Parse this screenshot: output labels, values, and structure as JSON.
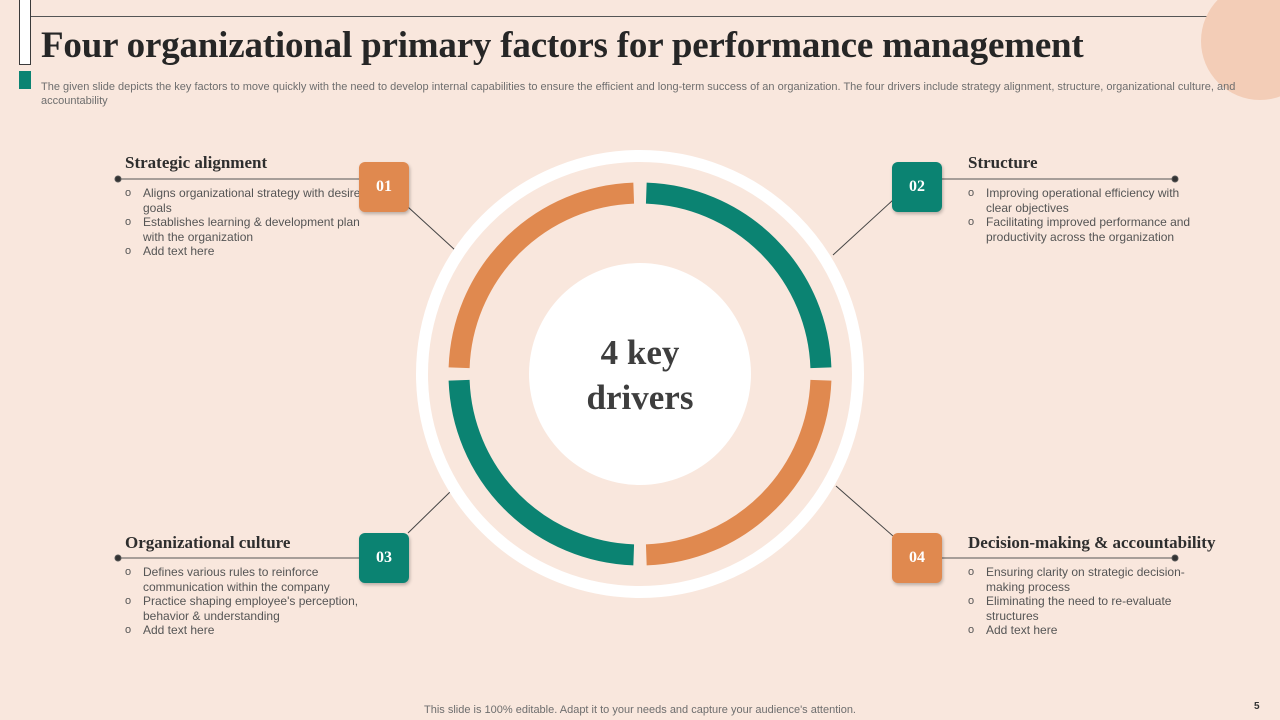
{
  "colors": {
    "orange": "#e0894f",
    "teal": "#0b8372",
    "background": "#f9e7dd",
    "corner_circle": "#f3cdb7"
  },
  "title": "Four organizational primary factors for performance management",
  "subtitle": "The given slide depicts the key factors to move quickly with the need to develop internal capabilities to ensure the efficient and long-term success of an organization. The four drivers include strategy alignment, structure, organizational culture, and accountability",
  "center": {
    "line1": "4 key",
    "line2": "drivers"
  },
  "bullet_marker": "o",
  "drivers": [
    {
      "number": "01",
      "title": "Strategic alignment",
      "bullets": [
        "Aligns organizational strategy with desired goals",
        "Establishes learning & development plan with the organization",
        "Add text here"
      ]
    },
    {
      "number": "02",
      "title": "Structure",
      "bullets": [
        "Improving operational efficiency with clear objectives",
        "Facilitating improved performance and productivity across the organization"
      ]
    },
    {
      "number": "03",
      "title": "Organizational culture",
      "bullets": [
        "Defines various rules to reinforce communication within the company",
        "Practice shaping employee's perception, behavior & understanding",
        "Add text here"
      ]
    },
    {
      "number": "04",
      "title": "Decision-making & accountability",
      "bullets": [
        "Ensuring clarity on strategic decision-making process",
        "Eliminating the need to re-evaluate structures",
        "Add text here"
      ]
    }
  ],
  "footer": "This slide is 100% editable. Adapt it to your needs and capture your audience's attention.",
  "page_number": "5"
}
